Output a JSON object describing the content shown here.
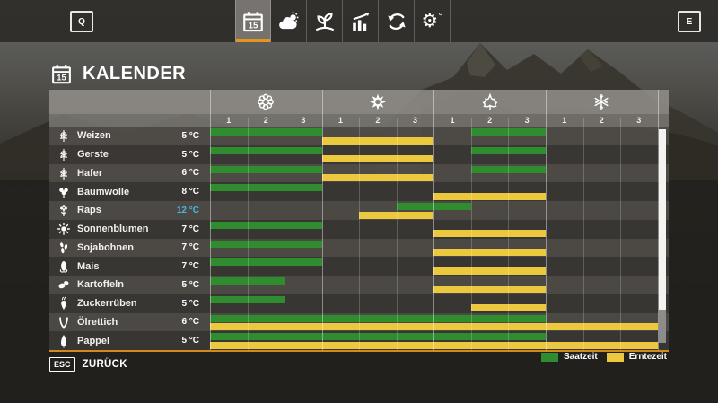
{
  "topbar": {
    "left_key": "Q",
    "right_key": "E",
    "calendar_day": "15",
    "accent_color": "#e8931d",
    "tabs": [
      {
        "name": "calendar",
        "icon": "calendar-icon",
        "selected": true
      },
      {
        "name": "weather",
        "icon": "weather-icon",
        "selected": false
      },
      {
        "name": "crops",
        "icon": "sprout-icon",
        "selected": false
      },
      {
        "name": "statistics",
        "icon": "statistics-icon",
        "selected": false
      },
      {
        "name": "economy",
        "icon": "cycle-arrows-icon",
        "selected": false
      },
      {
        "name": "settings",
        "icon": "gear-icon",
        "selected": false
      }
    ]
  },
  "header": {
    "title": "KALENDER",
    "icon": "calendar-icon"
  },
  "calendar": {
    "seasons": [
      {
        "name": "spring",
        "icon": "blossom-icon",
        "periods": [
          "1",
          "2",
          "3"
        ]
      },
      {
        "name": "summer",
        "icon": "sun-icon",
        "periods": [
          "1",
          "2",
          "3"
        ]
      },
      {
        "name": "autumn",
        "icon": "maple-leaf-icon",
        "periods": [
          "1",
          "2",
          "3"
        ]
      },
      {
        "name": "winter",
        "icon": "snowflake-icon",
        "periods": [
          "1",
          "2",
          "3"
        ]
      }
    ],
    "colors": {
      "sow": "#2f8c2f",
      "harvest": "#ecc83e"
    },
    "temperature_highlight_color": "#45b6e8",
    "current_day_marker": {
      "column": 2,
      "fraction": 0.52,
      "color": "#d3321f"
    },
    "crops": [
      {
        "name": "Weizen",
        "icon": "wheat-icon",
        "temperature": "5 °C",
        "sow_periods": [
          [
            1,
            3
          ],
          [
            8,
            9
          ]
        ],
        "harvest_periods": [
          [
            4,
            6
          ]
        ]
      },
      {
        "name": "Gerste",
        "icon": "barley-icon",
        "temperature": "5 °C",
        "sow_periods": [
          [
            1,
            3
          ],
          [
            8,
            9
          ]
        ],
        "harvest_periods": [
          [
            4,
            6
          ]
        ]
      },
      {
        "name": "Hafer",
        "icon": "oat-icon",
        "temperature": "6 °C",
        "sow_periods": [
          [
            1,
            3
          ],
          [
            8,
            9
          ]
        ],
        "harvest_periods": [
          [
            4,
            6
          ]
        ]
      },
      {
        "name": "Baumwolle",
        "icon": "cotton-icon",
        "temperature": "8 °C",
        "sow_periods": [
          [
            1,
            3
          ]
        ],
        "harvest_periods": [
          [
            7,
            9
          ]
        ]
      },
      {
        "name": "Raps",
        "icon": "canola-icon",
        "temperature": "12 °C",
        "temperature_highlighted": true,
        "sow_periods": [
          [
            6,
            7
          ]
        ],
        "harvest_periods": [
          [
            5,
            6
          ]
        ]
      },
      {
        "name": "Sonnenblumen",
        "icon": "sunflower-icon",
        "temperature": "7 °C",
        "sow_periods": [
          [
            1,
            3
          ]
        ],
        "harvest_periods": [
          [
            7,
            9
          ]
        ]
      },
      {
        "name": "Sojabohnen",
        "icon": "soybean-icon",
        "temperature": "7 °C",
        "sow_periods": [
          [
            1,
            3
          ]
        ],
        "harvest_periods": [
          [
            7,
            9
          ]
        ]
      },
      {
        "name": "Mais",
        "icon": "corn-icon",
        "temperature": "7 °C",
        "sow_periods": [
          [
            1,
            3
          ]
        ],
        "harvest_periods": [
          [
            7,
            9
          ]
        ]
      },
      {
        "name": "Kartoffeln",
        "icon": "potato-icon",
        "temperature": "5 °C",
        "sow_periods": [
          [
            1,
            2
          ]
        ],
        "harvest_periods": [
          [
            7,
            9
          ]
        ]
      },
      {
        "name": "Zuckerrüben",
        "icon": "sugarbeet-icon",
        "temperature": "5 °C",
        "sow_periods": [
          [
            1,
            2
          ]
        ],
        "harvest_periods": [
          [
            8,
            9
          ]
        ]
      },
      {
        "name": "Ölrettich",
        "icon": "oilradish-icon",
        "temperature": "6 °C",
        "sow_periods": [
          [
            1,
            9
          ]
        ],
        "harvest_periods": [
          [
            1,
            12
          ]
        ]
      },
      {
        "name": "Pappel",
        "icon": "poplar-icon",
        "temperature": "5 °C",
        "sow_periods": [
          [
            1,
            9
          ]
        ],
        "harvest_periods": [
          [
            1,
            12
          ]
        ]
      }
    ],
    "legend": [
      {
        "label": "Saatzeit",
        "color": "#2f8c2f"
      },
      {
        "label": "Erntezeit",
        "color": "#ecc83e"
      }
    ]
  },
  "footer": {
    "key_label": "ESC",
    "action_label": "ZURÜCK"
  }
}
